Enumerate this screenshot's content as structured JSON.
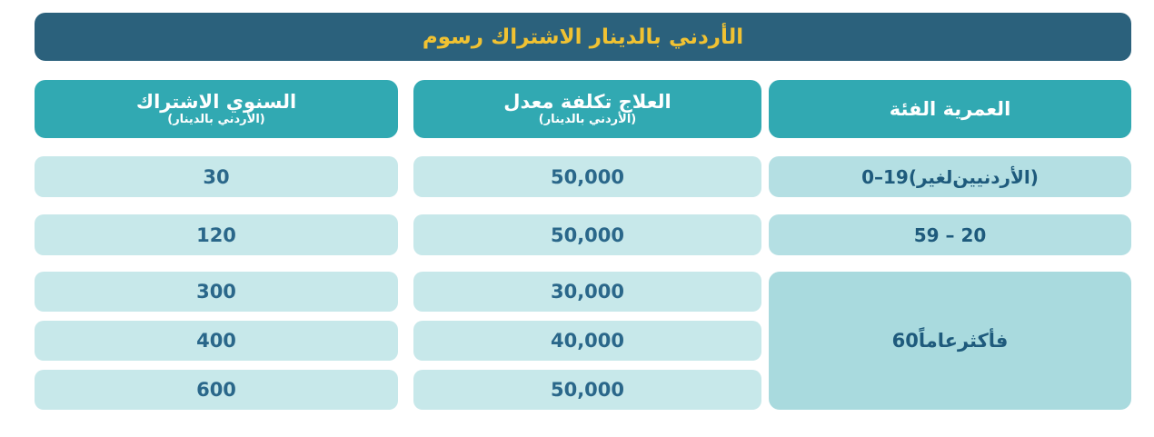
{
  "chart_data": {
    "type": "table",
    "direction": "rtl",
    "title": "رسوم الاشتراك بالدينار الأردني",
    "currency_note": "(بالدينار الأردني)",
    "columns": [
      {
        "id": "age_group",
        "label": "الفئة العمرية",
        "sublabel": ""
      },
      {
        "id": "treatment_cost",
        "label": "معدل تكلفة العلاج",
        "sublabel": "(بالدينار الأردني)"
      },
      {
        "id": "annual_fee",
        "label": "الاشتراك السنوي",
        "sublabel": "(بالدينار الأردني)"
      }
    ],
    "rows": [
      {
        "age_group": "0 – 19 (لغير الأردنيين)",
        "treatment_cost": "50,000",
        "annual_fee": "30"
      },
      {
        "age_group": "20 – 59",
        "treatment_cost": "50,000",
        "annual_fee": "120"
      },
      {
        "age_group": "60 عاماً فأكثر",
        "age_rowspan": 3,
        "treatment_cost": "30,000",
        "annual_fee": "300"
      },
      {
        "treatment_cost": "40,000",
        "annual_fee": "400"
      },
      {
        "treatment_cost": "50,000",
        "annual_fee": "600"
      }
    ]
  },
  "colors": {
    "title_bar_bg": "#2B617C",
    "title_text": "#F1C232",
    "header_bg": "#31A9B2",
    "header_text": "#FFFFFF",
    "number_cell_bg": "#C7E8EA",
    "age_cell_bg": "#B4DFE3",
    "merged_cell_bg": "#A9DADE",
    "cell_text": "#1E5A7C"
  }
}
